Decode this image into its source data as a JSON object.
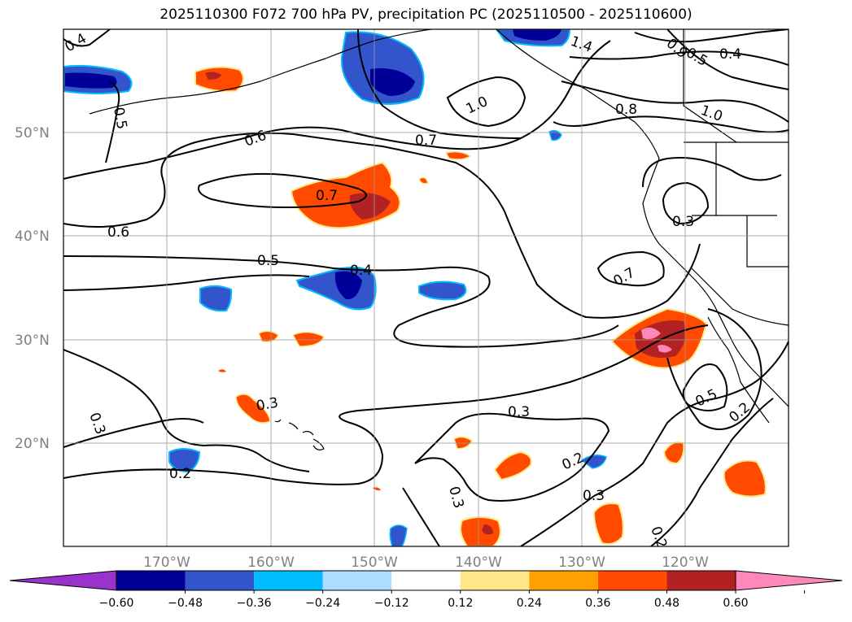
{
  "title": "2025110300 F072 700 hPa PV, precipitation PC (2025110500 - 2025110600)",
  "map": {
    "lat_labels": [
      "50°N",
      "40°N",
      "30°N",
      "20°N"
    ],
    "lon_labels": [
      "170°W",
      "160°W",
      "150°W",
      "140°W",
      "130°W",
      "120°W"
    ],
    "contour_labels": [
      "0.4",
      "0.5",
      "0.6",
      "0.6",
      "0.7",
      "0.7",
      "0.7",
      "0.5",
      "0.4",
      "0.3",
      "0.3",
      "0.2",
      "0.3",
      "0.2",
      "0.3",
      "0.2",
      "0.3",
      "0.5",
      "0.2",
      "0.3",
      "1.0",
      "1.4",
      "0.8",
      "1.0",
      "0.4",
      "0.5",
      "0.9"
    ]
  },
  "colorbar": {
    "ticks": [
      "−0.60",
      "−0.48",
      "−0.36",
      "−0.24",
      "−0.12",
      "0.12",
      "0.24",
      "0.36",
      "0.48",
      "0.60"
    ],
    "colors": [
      "#9933cc",
      "#000099",
      "#3355cc",
      "#00bbff",
      "#aaddff",
      "#ffffff",
      "#ffe88a",
      "#ffa000",
      "#ff4a00",
      "#b22222",
      "#ff88bb"
    ]
  }
}
